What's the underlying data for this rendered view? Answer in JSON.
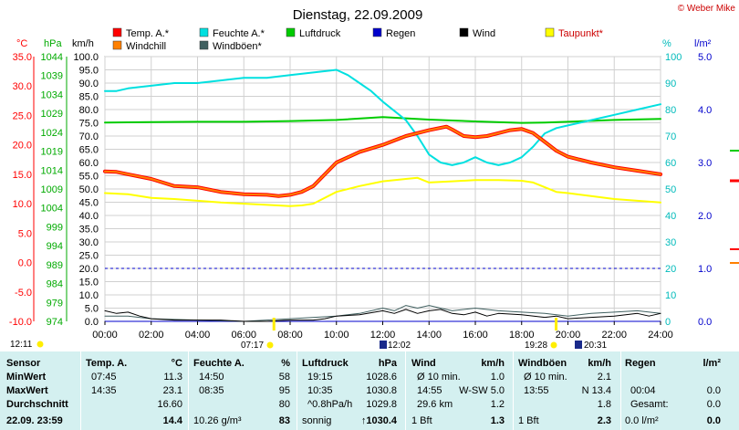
{
  "header": {
    "title": "Dienstag, 22.09.2009",
    "credit": "© Weber Mike"
  },
  "legend": [
    {
      "label": "Temp. A.*",
      "color": "#ff0000"
    },
    {
      "label": "Feuchte A.*",
      "color": "#00e0e0"
    },
    {
      "label": "Luftdruck",
      "color": "#00cc00"
    },
    {
      "label": "Regen",
      "color": "#0000cc"
    },
    {
      "label": "Wind",
      "color": "#000000"
    },
    {
      "label": "Taupunkt*",
      "color": "#ffff00"
    },
    {
      "label": "Windchill",
      "color": "#ff8000"
    },
    {
      "label": "Windböen*",
      "color": "#406060"
    }
  ],
  "axis_units": {
    "temp": "°C",
    "pressure": "hPa",
    "wind": "km/h",
    "humidity": "%",
    "rain": "l/m²"
  },
  "sun": {
    "sunrise": "07:17",
    "sunset": "19:28",
    "moonrise": "12:02",
    "moonset": "20:31",
    "left_time": "12:11"
  },
  "chart_data": {
    "type": "line",
    "title": "Dienstag, 22.09.2009",
    "x_ticks": [
      "00:00",
      "02:00",
      "04:00",
      "06:00",
      "08:00",
      "10:00",
      "12:00",
      "14:00",
      "16:00",
      "18:00",
      "20:00",
      "22:00",
      "24:00"
    ],
    "x_range_hours": [
      0,
      24
    ],
    "axes": {
      "temp": {
        "unit": "°C",
        "range": [
          -10,
          35
        ],
        "ticks": [
          "35.0",
          "30.0",
          "25.0",
          "20.0",
          "15.0",
          "10.0",
          "5.0",
          "0.0",
          "-5.0",
          "-10.0"
        ],
        "color": "#ff0000"
      },
      "pressure": {
        "unit": "hPa",
        "range": [
          974,
          1046.7
        ],
        "ticks": [
          "1044",
          "1039",
          "1034",
          "1029",
          "1024",
          "1019",
          "1014",
          "1009",
          "1004",
          "999",
          "994",
          "989",
          "984",
          "979",
          "974"
        ],
        "color": "#00cc00"
      },
      "wind": {
        "unit": "km/h",
        "range": [
          0,
          100
        ],
        "ticks": [
          "100.0",
          "95.0",
          "90.0",
          "85.0",
          "80.0",
          "75.0",
          "70.0",
          "65.0",
          "60.0",
          "55.0",
          "50.0",
          "45.0",
          "40.0",
          "35.0",
          "30.0",
          "25.0",
          "20.0",
          "15.0",
          "10.0",
          "5.0",
          "0.0"
        ],
        "color": "#000000"
      },
      "humidity": {
        "unit": "%",
        "range": [
          0,
          100
        ],
        "ticks": [
          "100",
          "90",
          "80",
          "70",
          "60",
          "50",
          "40",
          "30",
          "20",
          "10",
          "0"
        ],
        "color": "#00e0e0"
      },
      "rain": {
        "unit": "l/m²",
        "range": [
          0,
          5
        ],
        "ticks": [
          "5.0",
          "4.0",
          "3.0",
          "2.0",
          "1.0",
          "0.0"
        ],
        "color": "#0000cc"
      }
    },
    "series": [
      {
        "name": "Temp. A.*",
        "axis": "temp",
        "color": "#ff0000",
        "width": 4,
        "x": [
          0,
          0.5,
          1,
          2,
          3,
          4,
          5,
          6,
          7,
          7.5,
          8,
          8.5,
          9,
          9.5,
          10,
          11,
          12,
          13,
          14,
          14.75,
          15,
          15.5,
          16,
          16.5,
          17,
          17.5,
          18,
          18.5,
          19,
          19.5,
          20,
          21,
          22,
          23,
          24
        ],
        "y": [
          15.5,
          15.4,
          15.0,
          14.2,
          13.0,
          12.8,
          12.0,
          11.6,
          11.5,
          11.3,
          11.5,
          12.0,
          13.0,
          15.0,
          17.0,
          18.8,
          20.0,
          21.5,
          22.5,
          23.1,
          22.6,
          21.5,
          21.3,
          21.5,
          22.0,
          22.5,
          22.7,
          22.0,
          20.5,
          19.0,
          18.0,
          17.0,
          16.2,
          15.6,
          15.0
        ]
      },
      {
        "name": "Windchill",
        "axis": "temp",
        "color": "#ff8000",
        "width": 2,
        "x": [
          0,
          0.5,
          1,
          2,
          3,
          4,
          5,
          6,
          7,
          7.5,
          8,
          8.5,
          9,
          9.5,
          10,
          11,
          12,
          13,
          14,
          14.75,
          15,
          15.5,
          16,
          16.5,
          17,
          17.5,
          18,
          18.5,
          19,
          19.5,
          20,
          21,
          22,
          23,
          24
        ],
        "y": [
          15.5,
          15.4,
          15.0,
          14.2,
          13.0,
          12.8,
          12.0,
          11.6,
          11.5,
          11.3,
          11.5,
          12.0,
          13.0,
          15.0,
          17.0,
          18.8,
          20.0,
          21.5,
          22.5,
          23.1,
          22.6,
          21.5,
          21.3,
          21.5,
          22.0,
          22.5,
          22.7,
          22.0,
          20.5,
          19.0,
          18.0,
          17.0,
          16.2,
          15.6,
          15.0
        ]
      },
      {
        "name": "Feuchte A.*",
        "axis": "humidity",
        "color": "#00e0e0",
        "width": 2,
        "x": [
          0,
          0.5,
          1,
          2,
          3,
          4,
          5,
          6,
          7,
          8,
          9,
          10,
          10.5,
          11,
          11.5,
          12,
          13,
          13.5,
          14,
          14.5,
          15,
          15.5,
          16,
          16.5,
          17,
          17.5,
          18,
          18.5,
          19,
          19.5,
          20,
          21,
          22,
          23,
          24
        ],
        "y": [
          87,
          87,
          88,
          89,
          90,
          90,
          91,
          92,
          92,
          93,
          94,
          95,
          93,
          90,
          87,
          83,
          76,
          70,
          63,
          60,
          59,
          60,
          62,
          60,
          59,
          60,
          62,
          66,
          71,
          73,
          74,
          76,
          78,
          80,
          82
        ]
      },
      {
        "name": "Luftdruck",
        "axis": "pressure",
        "color": "#00cc00",
        "width": 2,
        "x": [
          0,
          2,
          4,
          6,
          8,
          10,
          12,
          14,
          16,
          18,
          19,
          20,
          22,
          24
        ],
        "y": [
          1028.6,
          1028.7,
          1028.8,
          1028.8,
          1029.0,
          1029.3,
          1030.1,
          1029.4,
          1028.9,
          1028.5,
          1028.6,
          1028.8,
          1029.3,
          1029.6
        ]
      },
      {
        "name": "Taupunkt*",
        "axis": "temp",
        "color": "#ffff00",
        "width": 2,
        "x": [
          0,
          1,
          2,
          3,
          4,
          5,
          6,
          7,
          8,
          8.5,
          9,
          10,
          11,
          12,
          13,
          13.5,
          14,
          15,
          16,
          17,
          18,
          18.5,
          19,
          19.5,
          20,
          21,
          22,
          23,
          24
        ],
        "y": [
          11.8,
          11.6,
          11.0,
          10.8,
          10.5,
          10.2,
          10.0,
          9.8,
          9.6,
          9.7,
          10.0,
          12.0,
          13.0,
          13.8,
          14.2,
          14.4,
          13.6,
          13.8,
          14.0,
          14.0,
          13.9,
          13.6,
          12.8,
          12.0,
          11.8,
          11.3,
          10.8,
          10.5,
          10.2
        ]
      },
      {
        "name": "Wind",
        "axis": "wind",
        "color": "#000000",
        "width": 1,
        "x": [
          0,
          0.5,
          1,
          1.5,
          2,
          3,
          4,
          5,
          6,
          7,
          8,
          9,
          9.5,
          10,
          11,
          12,
          12.5,
          13,
          13.5,
          14,
          14.5,
          15,
          15.5,
          16,
          16.5,
          17,
          18,
          19,
          19.5,
          20,
          21,
          22,
          23,
          23.5,
          24
        ],
        "y": [
          4,
          3,
          3.5,
          2,
          1,
          0.5,
          0.5,
          0.5,
          0,
          0,
          0.5,
          0.5,
          1,
          2,
          2.5,
          4,
          3,
          4.5,
          3,
          4,
          4.5,
          3,
          2.5,
          3.5,
          2,
          3,
          2.5,
          1.5,
          2,
          1,
          1.5,
          2,
          3,
          2,
          3
        ]
      },
      {
        "name": "Windböen*",
        "axis": "wind",
        "color": "#406060",
        "width": 1,
        "x": [
          0,
          1,
          2,
          4,
          6,
          8,
          10,
          11,
          12,
          12.5,
          13,
          13.5,
          14,
          14.5,
          15,
          16,
          17,
          18,
          19,
          20,
          21,
          22,
          23,
          24
        ],
        "y": [
          2,
          2,
          1,
          0.5,
          0,
          1,
          2,
          3,
          5,
          4,
          6,
          5,
          6,
          5,
          4,
          5,
          4,
          3.5,
          3,
          2,
          3,
          3.5,
          4,
          3
        ]
      },
      {
        "name": "Regen",
        "axis": "rain",
        "color": "#0000cc",
        "width": 1,
        "x": [
          0,
          24
        ],
        "y": [
          0,
          0
        ]
      }
    ],
    "rain_reference": {
      "axis": "rain",
      "value": 1.0,
      "color": "#0000cc"
    }
  },
  "table": {
    "row_labels": [
      "Sensor",
      "MinWert",
      "MaxWert",
      "Durchschnitt",
      "22.09.  23:59"
    ],
    "temp": {
      "header": "Temp. A.",
      "unit": "°C",
      "rows": [
        [
          "07:45",
          "11.3"
        ],
        [
          "14:35",
          "23.1"
        ],
        [
          "",
          "16.60"
        ],
        [
          "",
          "14.4"
        ]
      ]
    },
    "humidity": {
      "header": "Feuchte A.",
      "unit": "%",
      "rows": [
        [
          "14:50",
          "58"
        ],
        [
          "08:35",
          "95"
        ],
        [
          "",
          "80"
        ],
        [
          "10.26 g/m³",
          "83"
        ]
      ]
    },
    "pressure": {
      "header": "Luftdruck",
      "unit": "hPa",
      "rows": [
        [
          "19:15",
          "1028.6"
        ],
        [
          "10:35",
          "1030.8"
        ],
        [
          "^0.8hPa/h",
          "1029.8"
        ],
        [
          "sonnig",
          "↑1030.4"
        ]
      ]
    },
    "wind": {
      "header": "Wind",
      "unit": "km/h",
      "rows": [
        [
          "Ø 10 min.",
          "1.0"
        ],
        [
          "14:55",
          "W-SW 5.0"
        ],
        [
          "29.6 km",
          "1.2"
        ],
        [
          "1 Bft",
          "1.3"
        ]
      ]
    },
    "gusts": {
      "header": "Windböen",
      "unit": "km/h",
      "rows": [
        [
          "Ø 10 min.",
          "2.1"
        ],
        [
          "13:55",
          "N 13.4"
        ],
        [
          "",
          "1.8"
        ],
        [
          "1 Bft",
          "2.3"
        ]
      ]
    },
    "rain": {
      "header": "Regen",
      "unit": "l/m²",
      "rows": [
        [
          "",
          ""
        ],
        [
          "00:04",
          "0.0"
        ],
        [
          "Gesamt:",
          "0.0"
        ],
        [
          "0.0 l/m²",
          "0.0"
        ]
      ]
    }
  }
}
